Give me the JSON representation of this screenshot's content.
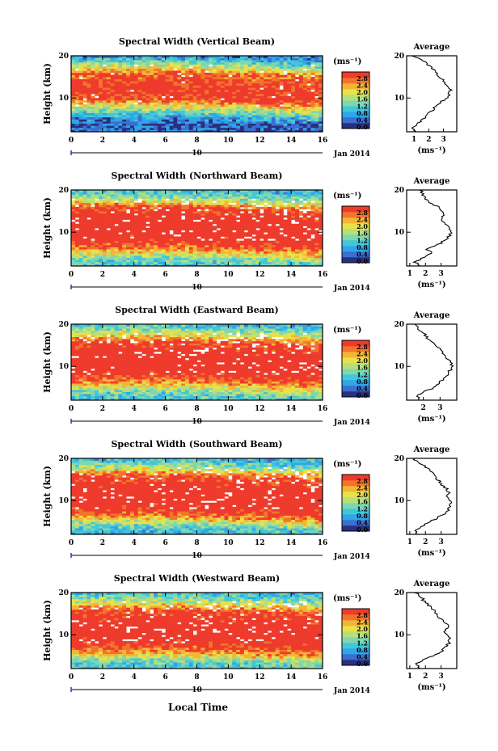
{
  "figure": {
    "xlabel": "Local Time",
    "date_label": "Jan 2014",
    "day_label": "10",
    "unit_label": "(ms⁻¹)",
    "average_title": "Average"
  },
  "colorbar": {
    "ticks": [
      "2.8",
      "2.4",
      "2.0",
      "1.6",
      "1.2",
      "0.8",
      "0.4",
      "0.0"
    ],
    "colors": [
      "#2a2f80",
      "#3b6fd0",
      "#2fa6e8",
      "#43c7d8",
      "#7fd7b0",
      "#b7df78",
      "#e8e14a",
      "#f5b436",
      "#f2742b",
      "#ee3b2c"
    ]
  },
  "chart_data": [
    {
      "type": "heatmap",
      "title": "Spectral Width (Vertical Beam)",
      "xlabel": "Local Time",
      "ylabel": "Height (km)",
      "xlim": [
        0,
        16
      ],
      "ylim": [
        2,
        20
      ],
      "xticks": [
        0,
        2,
        4,
        6,
        8,
        10,
        12,
        14,
        16
      ],
      "yticks": [
        10,
        20
      ],
      "colorbar_range": [
        0,
        3.0
      ],
      "value_profile": [
        [
          2,
          0.5
        ],
        [
          4,
          0.3
        ],
        [
          6,
          0.9
        ],
        [
          8,
          1.8
        ],
        [
          10,
          2.9
        ],
        [
          12,
          3.0
        ],
        [
          14,
          2.9
        ],
        [
          16,
          2.6
        ],
        [
          18,
          1.6
        ],
        [
          20,
          0.6
        ]
      ],
      "average": {
        "xticks": [
          1,
          2,
          3
        ],
        "xlim": [
          0.5,
          3.9
        ],
        "xlabel": "(ms⁻¹)",
        "profile": [
          [
            2,
            1.1
          ],
          [
            3,
            0.9
          ],
          [
            4,
            1.3
          ],
          [
            5,
            1.6
          ],
          [
            6,
            1.9
          ],
          [
            7,
            2.2
          ],
          [
            8,
            2.5
          ],
          [
            9,
            2.8
          ],
          [
            10,
            3.2
          ],
          [
            11,
            3.4
          ],
          [
            12,
            3.5
          ],
          [
            13,
            3.3
          ],
          [
            14,
            3.0
          ],
          [
            15,
            2.7
          ],
          [
            16,
            2.5
          ],
          [
            17,
            2.2
          ],
          [
            18,
            1.9
          ],
          [
            19,
            1.5
          ],
          [
            20,
            0.9
          ]
        ]
      }
    },
    {
      "type": "heatmap",
      "title": "Spectral Width (Northward Beam)",
      "xlabel": "Local Time",
      "ylabel": "Height (km)",
      "xlim": [
        0,
        16
      ],
      "ylim": [
        2,
        20
      ],
      "xticks": [
        0,
        2,
        4,
        6,
        8,
        10,
        12,
        14,
        16
      ],
      "yticks": [
        10,
        20
      ],
      "colorbar_range": [
        0,
        3.0
      ],
      "value_profile": [
        [
          2,
          1.0
        ],
        [
          4,
          1.4
        ],
        [
          6,
          2.4
        ],
        [
          8,
          3.0
        ],
        [
          10,
          3.2
        ],
        [
          12,
          3.2
        ],
        [
          14,
          3.1
        ],
        [
          16,
          2.8
        ],
        [
          18,
          1.6
        ],
        [
          20,
          1.0
        ]
      ],
      "average": {
        "xticks": [
          1,
          2,
          3
        ],
        "xlim": [
          0.8,
          4.0
        ],
        "xlabel": "(ms⁻¹)",
        "profile": [
          [
            2,
            1.6
          ],
          [
            3,
            1.3
          ],
          [
            4,
            1.9
          ],
          [
            5,
            2.4
          ],
          [
            6,
            2.0
          ],
          [
            7,
            2.8
          ],
          [
            8,
            3.2
          ],
          [
            9,
            3.5
          ],
          [
            10,
            3.6
          ],
          [
            11,
            3.5
          ],
          [
            12,
            3.3
          ],
          [
            13,
            3.0
          ],
          [
            14,
            3.2
          ],
          [
            15,
            3.0
          ],
          [
            16,
            2.8
          ],
          [
            17,
            2.2
          ],
          [
            18,
            2.0
          ],
          [
            19,
            1.8
          ],
          [
            20,
            1.7
          ]
        ]
      }
    },
    {
      "type": "heatmap",
      "title": "Spectral Width (Eastward Beam)",
      "xlabel": "Local Time",
      "ylabel": "Height (km)",
      "xlim": [
        0,
        16
      ],
      "ylim": [
        2,
        20
      ],
      "xticks": [
        0,
        2,
        4,
        6,
        8,
        10,
        12,
        14,
        16
      ],
      "yticks": [
        10,
        20
      ],
      "colorbar_range": [
        0,
        3.0
      ],
      "value_profile": [
        [
          2,
          1.0
        ],
        [
          4,
          1.3
        ],
        [
          6,
          2.3
        ],
        [
          8,
          3.0
        ],
        [
          10,
          3.2
        ],
        [
          12,
          3.2
        ],
        [
          14,
          3.1
        ],
        [
          16,
          2.8
        ],
        [
          18,
          1.8
        ],
        [
          20,
          1.0
        ]
      ],
      "average": {
        "xticks": [
          2,
          3
        ],
        "xlim": [
          1.0,
          4.0
        ],
        "xlabel": "(ms⁻¹)",
        "profile": [
          [
            2,
            1.8
          ],
          [
            3,
            1.7
          ],
          [
            4,
            2.1
          ],
          [
            5,
            2.6
          ],
          [
            6,
            2.9
          ],
          [
            7,
            3.2
          ],
          [
            8,
            3.4
          ],
          [
            9,
            3.6
          ],
          [
            10,
            3.7
          ],
          [
            11,
            3.6
          ],
          [
            12,
            3.4
          ],
          [
            13,
            3.2
          ],
          [
            14,
            3.0
          ],
          [
            15,
            2.7
          ],
          [
            16,
            2.5
          ],
          [
            17,
            2.2
          ],
          [
            18,
            2.0
          ],
          [
            19,
            1.7
          ],
          [
            20,
            1.5
          ]
        ]
      }
    },
    {
      "type": "heatmap",
      "title": "Spectral Width (Southward Beam)",
      "xlabel": "Local Time",
      "ylabel": "Height (km)",
      "xlim": [
        0,
        16
      ],
      "ylim": [
        2,
        20
      ],
      "xticks": [
        0,
        2,
        4,
        6,
        8,
        10,
        12,
        14,
        16
      ],
      "yticks": [
        10,
        20
      ],
      "colorbar_range": [
        0,
        3.0
      ],
      "value_profile": [
        [
          2,
          0.9
        ],
        [
          4,
          1.2
        ],
        [
          6,
          2.3
        ],
        [
          8,
          3.0
        ],
        [
          10,
          3.2
        ],
        [
          12,
          3.2
        ],
        [
          14,
          3.1
        ],
        [
          16,
          2.8
        ],
        [
          18,
          1.6
        ],
        [
          20,
          0.9
        ]
      ],
      "average": {
        "xticks": [
          1,
          2,
          3
        ],
        "xlim": [
          0.8,
          4.0
        ],
        "xlabel": "(ms⁻¹)",
        "profile": [
          [
            2,
            1.5
          ],
          [
            3,
            1.3
          ],
          [
            4,
            1.8
          ],
          [
            5,
            2.3
          ],
          [
            6,
            2.8
          ],
          [
            7,
            3.2
          ],
          [
            8,
            3.5
          ],
          [
            9,
            3.6
          ],
          [
            10,
            3.5
          ],
          [
            11,
            3.4
          ],
          [
            12,
            3.5
          ],
          [
            13,
            3.3
          ],
          [
            14,
            3.0
          ],
          [
            15,
            2.8
          ],
          [
            16,
            2.6
          ],
          [
            17,
            2.3
          ],
          [
            18,
            2.0
          ],
          [
            19,
            1.6
          ],
          [
            20,
            1.2
          ]
        ]
      }
    },
    {
      "type": "heatmap",
      "title": "Spectral Width (Westward Beam)",
      "xlabel": "Local Time",
      "ylabel": "Height (km)",
      "xlim": [
        0,
        16
      ],
      "ylim": [
        2,
        20
      ],
      "xticks": [
        0,
        2,
        4,
        6,
        8,
        10,
        12,
        14,
        16
      ],
      "yticks": [
        10,
        20
      ],
      "colorbar_range": [
        0,
        3.0
      ],
      "value_profile": [
        [
          2,
          1.0
        ],
        [
          4,
          1.3
        ],
        [
          6,
          2.4
        ],
        [
          8,
          3.0
        ],
        [
          10,
          3.2
        ],
        [
          12,
          3.2
        ],
        [
          14,
          3.1
        ],
        [
          16,
          2.8
        ],
        [
          18,
          1.7
        ],
        [
          20,
          1.0
        ]
      ],
      "average": {
        "xticks": [
          1,
          2,
          3
        ],
        "xlim": [
          0.8,
          4.0
        ],
        "xlabel": "(ms⁻¹)",
        "profile": [
          [
            2,
            1.6
          ],
          [
            3,
            1.4
          ],
          [
            4,
            1.9
          ],
          [
            5,
            2.5
          ],
          [
            6,
            3.0
          ],
          [
            7,
            3.3
          ],
          [
            8,
            3.5
          ],
          [
            9,
            3.6
          ],
          [
            10,
            3.4
          ],
          [
            11,
            3.2
          ],
          [
            12,
            3.4
          ],
          [
            13,
            3.3
          ],
          [
            14,
            2.9
          ],
          [
            15,
            2.7
          ],
          [
            16,
            2.5
          ],
          [
            17,
            2.2
          ],
          [
            18,
            1.9
          ],
          [
            19,
            1.7
          ],
          [
            20,
            1.4
          ]
        ]
      }
    }
  ]
}
